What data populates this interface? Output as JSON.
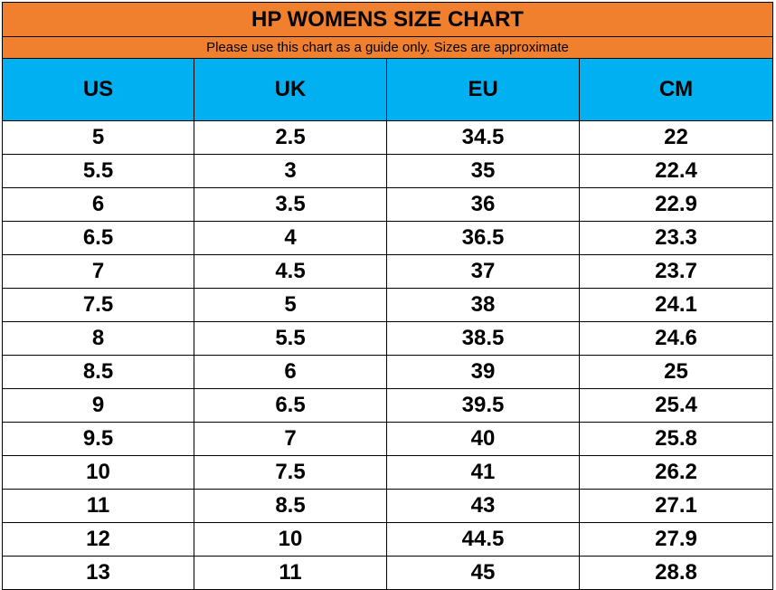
{
  "header": {
    "title": "HP WOMENS SIZE CHART",
    "subtitle": "Please use this chart as a guide only. Sizes are approximate"
  },
  "table": {
    "columns": [
      "US",
      "UK",
      "EU",
      "CM"
    ],
    "rows": [
      [
        "5",
        "2.5",
        "34.5",
        "22"
      ],
      [
        "5.5",
        "3",
        "35",
        "22.4"
      ],
      [
        "6",
        "3.5",
        "36",
        "22.9"
      ],
      [
        "6.5",
        "4",
        "36.5",
        "23.3"
      ],
      [
        "7",
        "4.5",
        "37",
        "23.7"
      ],
      [
        "7.5",
        "5",
        "38",
        "24.1"
      ],
      [
        "8",
        "5.5",
        "38.5",
        "24.6"
      ],
      [
        "8.5",
        "6",
        "39",
        "25"
      ],
      [
        "9",
        "6.5",
        "39.5",
        "25.4"
      ],
      [
        "9.5",
        "7",
        "40",
        "25.8"
      ],
      [
        "10",
        "7.5",
        "41",
        "26.2"
      ],
      [
        "11",
        "8.5",
        "43",
        "27.1"
      ],
      [
        "12",
        "10",
        "44.5",
        "27.9"
      ],
      [
        "13",
        "11",
        "45",
        "28.8"
      ]
    ]
  }
}
